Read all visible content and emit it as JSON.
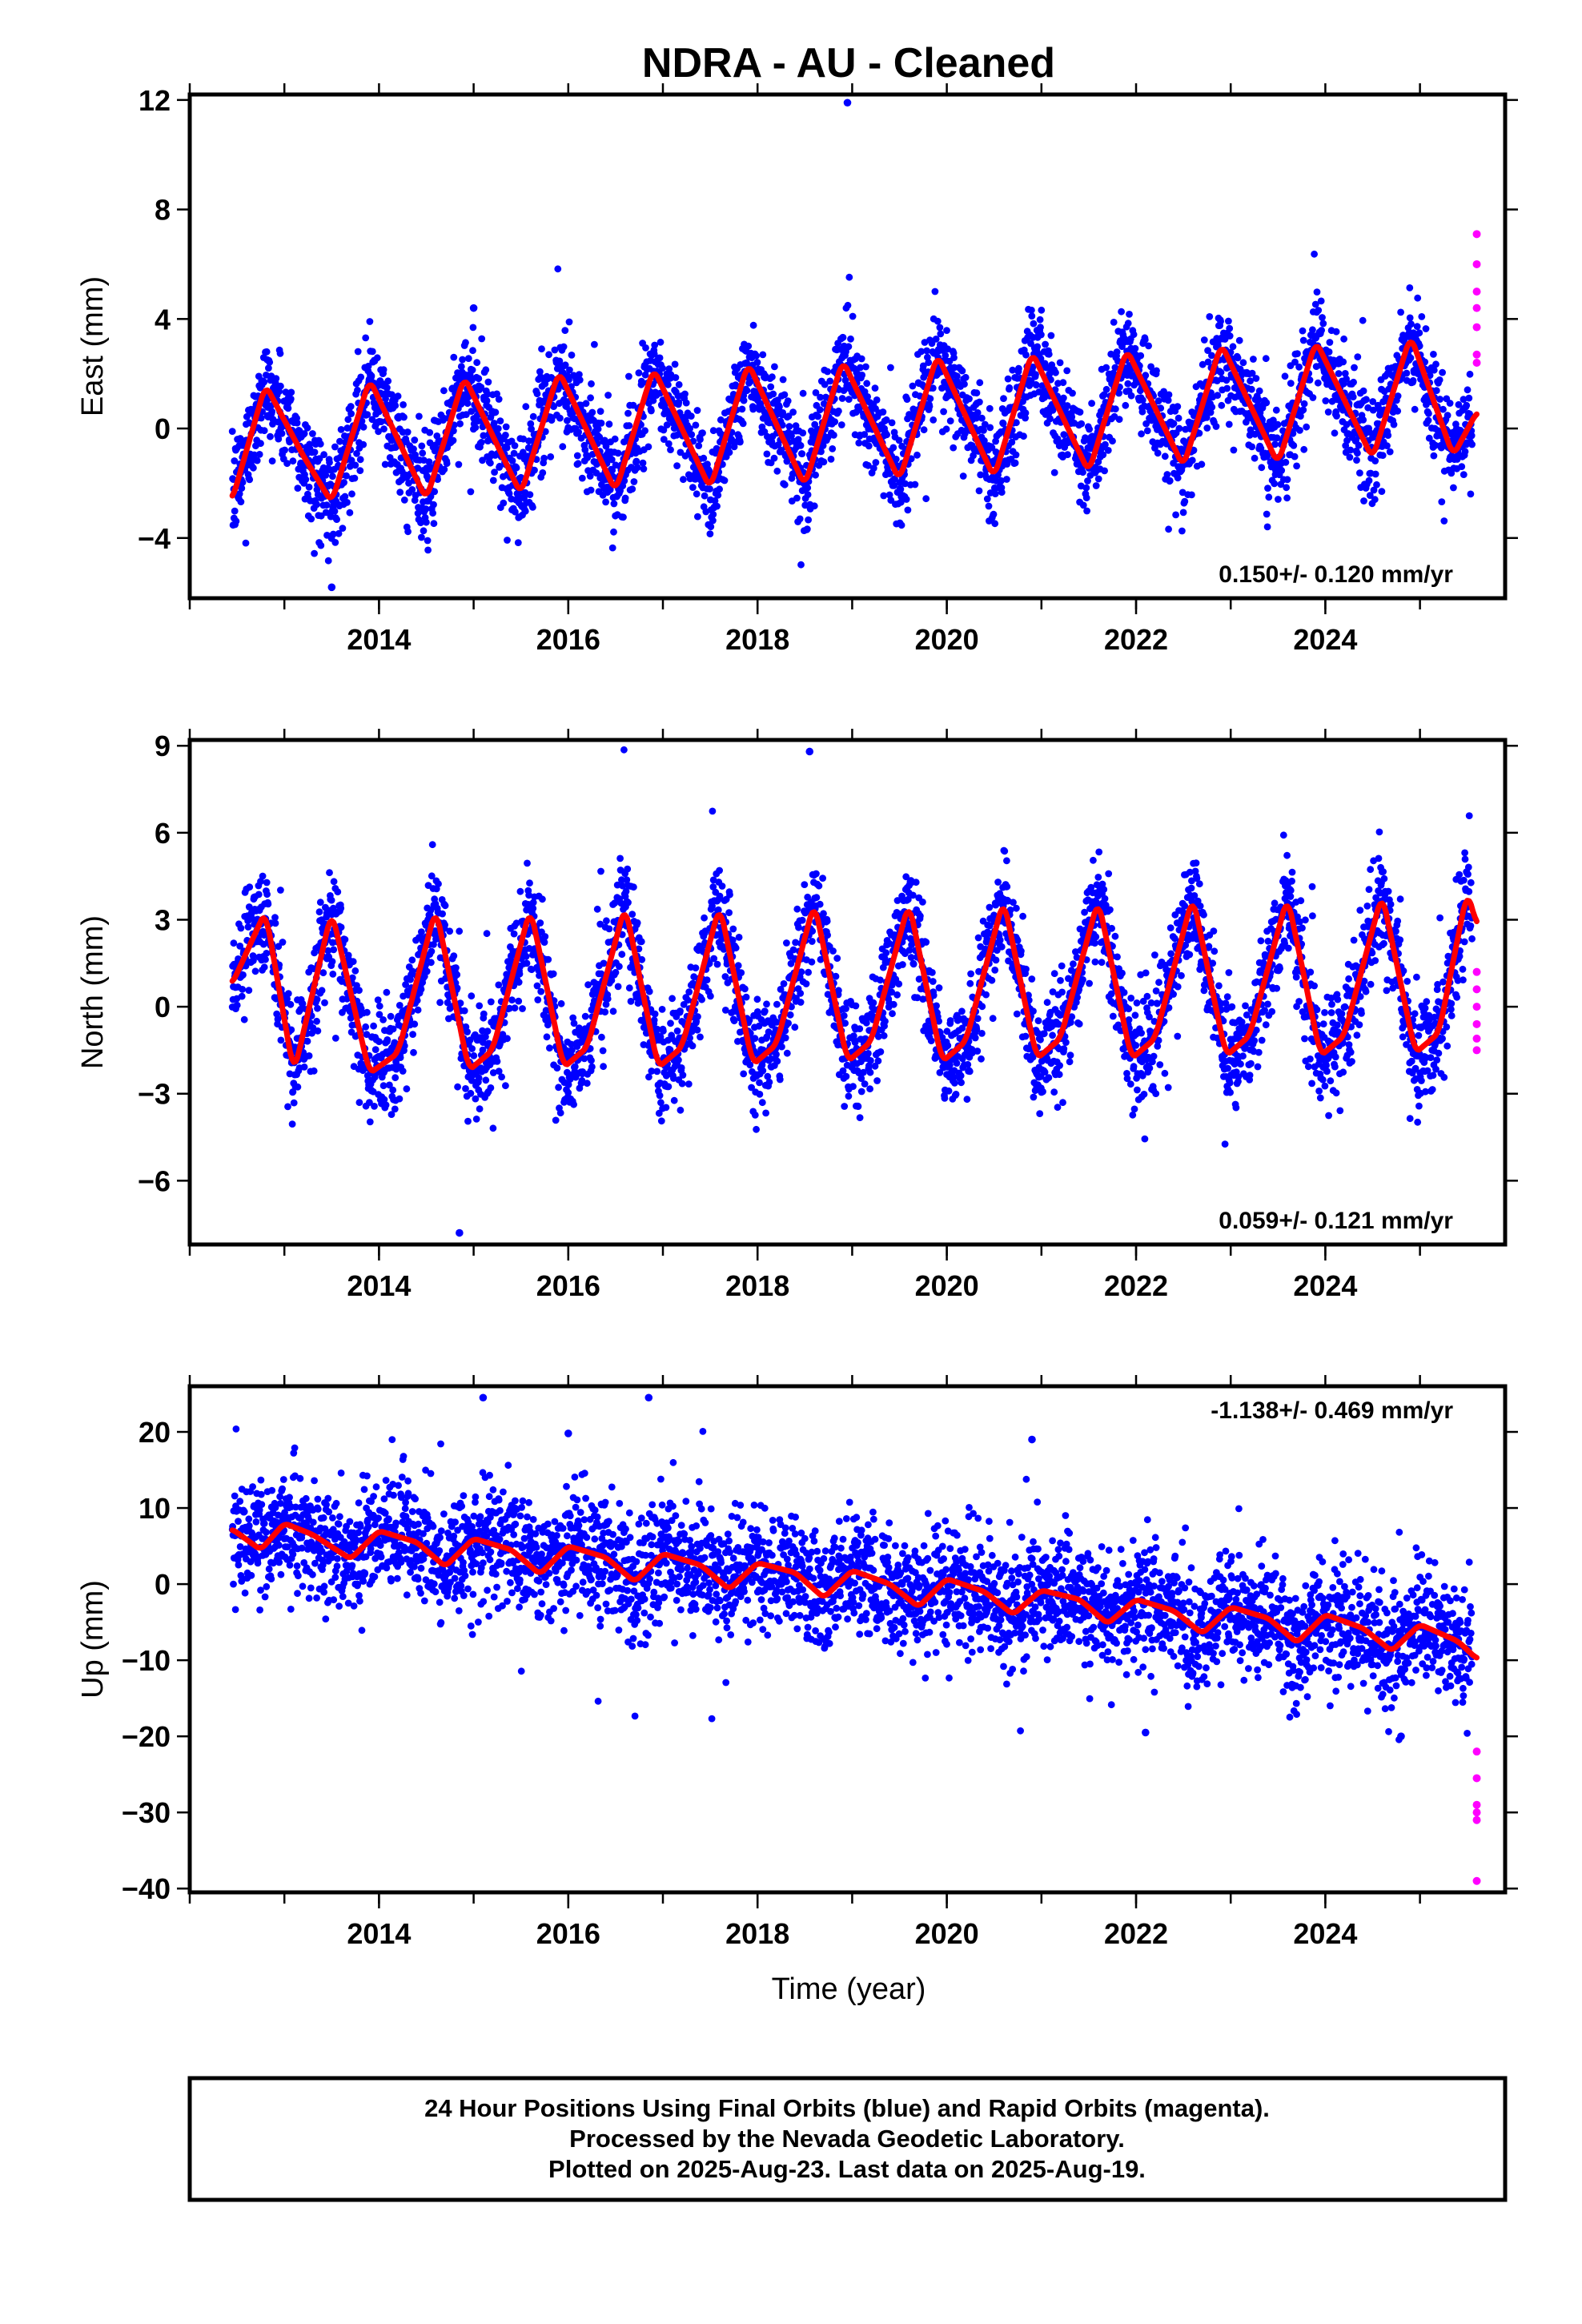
{
  "title": "NDRA  - AU - Cleaned",
  "xlabel": "Time (year)",
  "footer": {
    "line1": "24 Hour Positions Using Final Orbits (blue) and Rapid Orbits (magenta).",
    "line2": "Processed by the Nevada Geodetic Laboratory.",
    "line3": "Plotted on 2025-Aug-23. Last data on 2025-Aug-19."
  },
  "colors": {
    "final": "#0000ff",
    "rapid": "#ff00ff",
    "model": "#ff0000",
    "frame": "#000000"
  },
  "chart_data": [
    {
      "type": "scatter",
      "id": "east",
      "ylabel": "East (mm)",
      "rate_text": "0.150+/- 0.120 mm/yr",
      "rate_position": "bottom-right",
      "xlim": [
        2012.0,
        2025.9
      ],
      "ylim": [
        -6.2,
        12.2
      ],
      "xticks": [
        2014,
        2016,
        2018,
        2020,
        2022,
        2024
      ],
      "yticks": [
        -4,
        0,
        4,
        8,
        12
      ],
      "data_start": 2012.45,
      "data_end": 2025.55,
      "noise_mm": 0.9,
      "model": {
        "series_name": "model",
        "time": [
          2012.45,
          2012.8,
          2013.2,
          2013.5,
          2013.9,
          2014.5,
          2014.9,
          2015.5,
          2015.9,
          2016.5,
          2016.9,
          2017.5,
          2017.9,
          2018.5,
          2018.9,
          2019.5,
          2019.9,
          2020.5,
          2020.9,
          2021.5,
          2021.9,
          2022.5,
          2022.9,
          2023.5,
          2023.9,
          2024.5,
          2024.9,
          2025.35,
          2025.6
        ],
        "value": [
          -2.6,
          1.6,
          -1.0,
          -2.7,
          1.8,
          -2.6,
          1.9,
          -2.4,
          2.1,
          -2.3,
          2.2,
          -2.2,
          2.4,
          -2.1,
          2.5,
          -1.9,
          2.7,
          -1.8,
          2.8,
          -1.6,
          2.9,
          -1.4,
          3.1,
          -1.3,
          3.2,
          -1.1,
          3.4,
          -1.0,
          0.6
        ]
      },
      "rapid": {
        "time": 2025.6,
        "values": [
          7.1,
          6.0,
          5.0,
          4.4,
          3.7,
          2.7,
          2.4
        ]
      },
      "outliers": [
        {
          "time": 2018.95,
          "value": 11.9
        },
        {
          "time": 2015.0,
          "value": 4.4
        },
        {
          "time": 2013.5,
          "value": -5.8
        }
      ]
    },
    {
      "type": "scatter",
      "id": "north",
      "ylabel": "North (mm)",
      "rate_text": "0.059+/- 0.121 mm/yr",
      "rate_position": "bottom-right",
      "xlim": [
        2012.0,
        2025.9
      ],
      "ylim": [
        -8.2,
        9.2
      ],
      "xticks": [
        2014,
        2016,
        2018,
        2020,
        2022,
        2024
      ],
      "yticks": [
        -6,
        -3,
        0,
        3,
        6,
        9
      ],
      "data_start": 2012.45,
      "data_end": 2025.55,
      "noise_mm": 0.9,
      "model": {
        "series_name": "model",
        "time": [
          2012.45,
          2012.8,
          2013.1,
          2013.5,
          2013.9,
          2014.2,
          2014.6,
          2014.95,
          2015.2,
          2015.6,
          2015.95,
          2016.2,
          2016.6,
          2016.95,
          2017.2,
          2017.6,
          2017.95,
          2018.2,
          2018.6,
          2018.95,
          2019.2,
          2019.6,
          2019.95,
          2020.2,
          2020.6,
          2020.95,
          2021.2,
          2021.6,
          2021.95,
          2022.2,
          2022.6,
          2022.95,
          2023.2,
          2023.6,
          2023.95,
          2024.2,
          2024.6,
          2024.95,
          2025.2,
          2025.5,
          2025.6
        ],
        "value": [
          0.8,
          3.3,
          -2.3,
          3.3,
          -2.3,
          -1.6,
          3.4,
          -2.2,
          -1.5,
          3.4,
          -2.1,
          -1.4,
          3.5,
          -2.1,
          -1.4,
          3.5,
          -2.0,
          -1.3,
          3.6,
          -1.9,
          -1.2,
          3.6,
          -1.9,
          -1.2,
          3.7,
          -1.8,
          -1.1,
          3.7,
          -1.8,
          -1.1,
          3.8,
          -1.7,
          -1.0,
          3.8,
          -1.7,
          -1.0,
          3.9,
          -1.6,
          -0.9,
          4.0,
          2.8
        ]
      },
      "rapid": {
        "time": 2025.6,
        "values": [
          1.2,
          0.6,
          0.0,
          -0.6,
          -1.1,
          -1.5
        ]
      },
      "outliers": [
        {
          "time": 2018.55,
          "value": 8.8
        },
        {
          "time": 2014.85,
          "value": -7.8
        }
      ]
    },
    {
      "type": "scatter",
      "id": "up",
      "ylabel": "Up (mm)",
      "rate_text": "-1.138+/- 0.469 mm/yr",
      "rate_position": "top-right",
      "xlim": [
        2012.0,
        2025.9
      ],
      "ylim": [
        -40.5,
        26.0
      ],
      "xticks": [
        2014,
        2016,
        2018,
        2020,
        2022,
        2024
      ],
      "yticks": [
        -40,
        -30,
        -20,
        -10,
        0,
        10,
        20
      ],
      "data_start": 2012.45,
      "data_end": 2025.55,
      "noise_mm": 3.8,
      "model": {
        "series_name": "model",
        "time": [
          2012.45,
          2012.75,
          2013.0,
          2013.3,
          2013.7,
          2014.0,
          2014.4,
          2014.7,
          2015.0,
          2015.4,
          2015.7,
          2016.0,
          2016.4,
          2016.7,
          2017.0,
          2017.4,
          2017.7,
          2018.0,
          2018.4,
          2018.7,
          2019.0,
          2019.4,
          2019.7,
          2020.0,
          2020.4,
          2020.7,
          2021.0,
          2021.4,
          2021.7,
          2022.0,
          2022.4,
          2022.7,
          2023.0,
          2023.4,
          2023.7,
          2024.0,
          2024.4,
          2024.7,
          2025.0,
          2025.4,
          2025.6
        ],
        "value": [
          7.2,
          4.5,
          8.0,
          6.5,
          3.3,
          7.0,
          5.5,
          2.3,
          6.0,
          4.5,
          1.3,
          5.0,
          3.5,
          0.3,
          4.0,
          2.5,
          -0.7,
          2.8,
          1.5,
          -1.8,
          1.8,
          0.0,
          -3.0,
          0.7,
          -1.0,
          -4.0,
          -0.8,
          -2.0,
          -5.2,
          -2.0,
          -3.5,
          -6.5,
          -3.0,
          -4.5,
          -7.7,
          -4.0,
          -5.8,
          -8.8,
          -5.3,
          -7.5,
          -9.8
        ]
      },
      "rapid": {
        "time": 2025.6,
        "values": [
          -22.0,
          -25.5,
          -29.0,
          -30.0,
          -31.0,
          -39.0
        ]
      },
      "outliers": [
        {
          "time": 2015.1,
          "value": 24.5
        },
        {
          "time": 2016.85,
          "value": 24.5
        },
        {
          "time": 2016.0,
          "value": 19.8
        },
        {
          "time": 2020.9,
          "value": 19.0
        },
        {
          "time": 2022.1,
          "value": -19.5
        },
        {
          "time": 2024.8,
          "value": -20.0
        }
      ]
    }
  ]
}
